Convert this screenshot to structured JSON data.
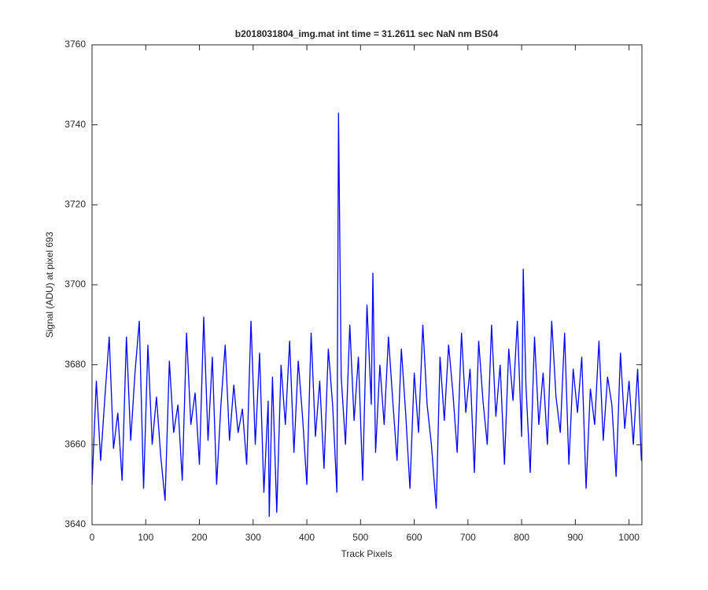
{
  "chart_data": {
    "type": "line",
    "title": "b2018031804_img.mat int time = 31.2611 sec  NaN nm BS04",
    "x_label": "Track Pixels",
    "y_label": "Signal (ADU) at pixel 693",
    "color": "#0000ff",
    "xlim": [
      0,
      1024
    ],
    "ylim": [
      3640,
      3760
    ],
    "xticks": [
      0,
      100,
      200,
      300,
      400,
      500,
      600,
      700,
      800,
      900,
      1000
    ],
    "yticks": [
      3640,
      3660,
      3680,
      3700,
      3720,
      3740,
      3760
    ],
    "x": [
      0,
      8,
      16,
      24,
      32,
      40,
      48,
      56,
      64,
      72,
      80,
      88,
      96,
      104,
      112,
      120,
      128,
      136,
      144,
      152,
      160,
      168,
      176,
      184,
      192,
      200,
      208,
      216,
      224,
      232,
      240,
      248,
      256,
      264,
      272,
      280,
      288,
      296,
      304,
      312,
      320,
      328,
      330,
      336,
      344,
      352,
      360,
      368,
      376,
      384,
      392,
      400,
      408,
      416,
      424,
      432,
      440,
      448,
      456,
      459,
      464,
      472,
      480,
      488,
      496,
      504,
      512,
      520,
      523,
      528,
      536,
      544,
      552,
      560,
      568,
      576,
      584,
      592,
      600,
      608,
      616,
      624,
      632,
      641,
      648,
      656,
      664,
      672,
      680,
      688,
      696,
      704,
      712,
      720,
      728,
      736,
      744,
      752,
      760,
      768,
      776,
      784,
      792,
      800,
      803,
      808,
      816,
      824,
      832,
      840,
      848,
      856,
      864,
      872,
      880,
      888,
      896,
      904,
      912,
      920,
      928,
      936,
      944,
      952,
      960,
      968,
      976,
      984,
      992,
      1000,
      1008,
      1016,
      1023
    ],
    "values": [
      3650,
      3676,
      3656,
      3672,
      3687,
      3659,
      3668,
      3651,
      3687,
      3661,
      3678,
      3691,
      3649,
      3685,
      3660,
      3672,
      3657,
      3646,
      3681,
      3663,
      3670,
      3651,
      3688,
      3665,
      3673,
      3655,
      3692,
      3661,
      3682,
      3650,
      3670,
      3685,
      3661,
      3675,
      3663,
      3669,
      3655,
      3691,
      3660,
      3683,
      3648,
      3671,
      3642,
      3677,
      3643,
      3680,
      3665,
      3686,
      3658,
      3681,
      3667,
      3650,
      3688,
      3662,
      3676,
      3654,
      3684,
      3670,
      3648,
      3743,
      3677,
      3660,
      3690,
      3666,
      3682,
      3651,
      3695,
      3670,
      3703,
      3658,
      3680,
      3665,
      3687,
      3671,
      3656,
      3684,
      3668,
      3649,
      3678,
      3663,
      3690,
      3670,
      3660,
      3644,
      3682,
      3666,
      3685,
      3673,
      3658,
      3688,
      3668,
      3679,
      3653,
      3686,
      3671,
      3660,
      3690,
      3667,
      3680,
      3655,
      3684,
      3671,
      3691,
      3662,
      3704,
      3675,
      3653,
      3687,
      3665,
      3678,
      3660,
      3691,
      3672,
      3663,
      3688,
      3655,
      3679,
      3668,
      3682,
      3649,
      3674,
      3665,
      3686,
      3661,
      3677,
      3670,
      3652,
      3683,
      3664,
      3676,
      3660,
      3679,
      3656
    ]
  }
}
